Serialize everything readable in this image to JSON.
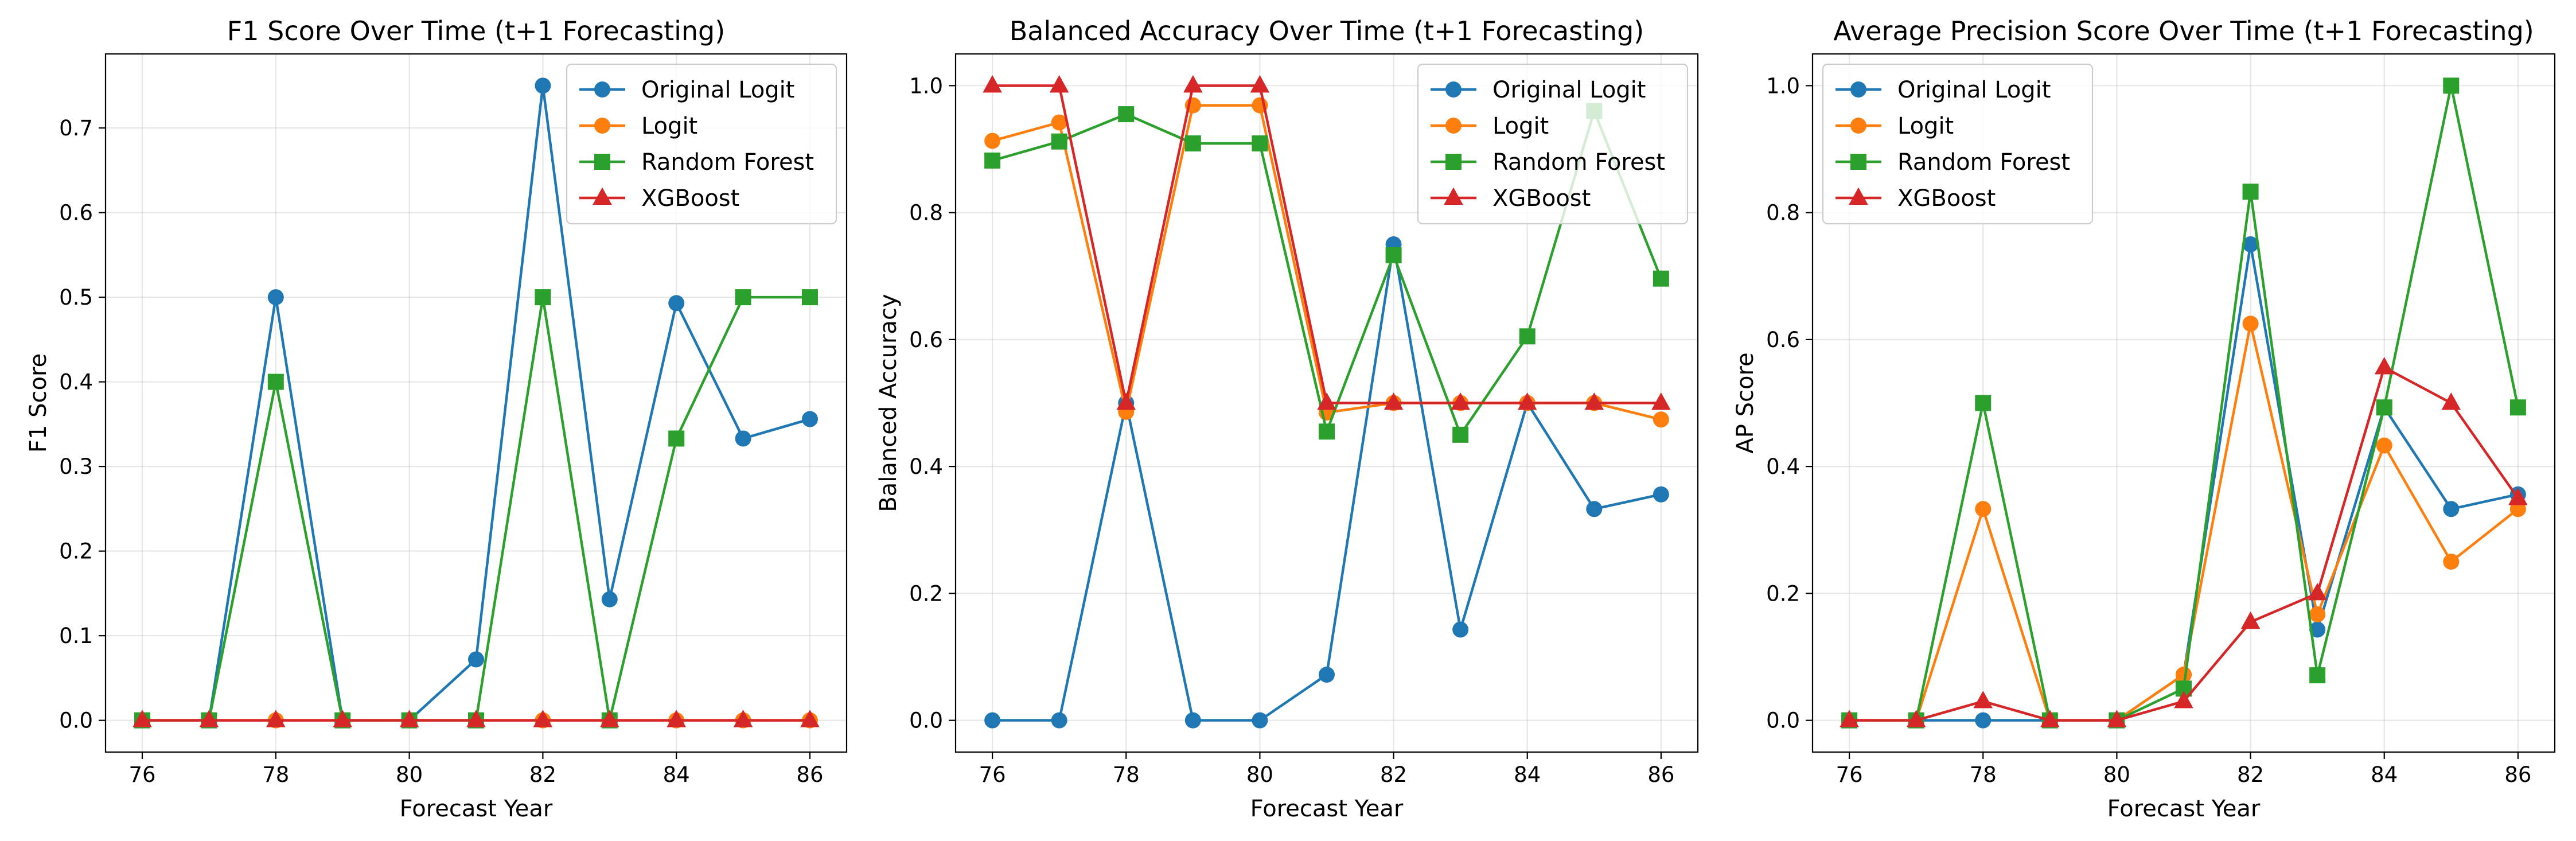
{
  "figure": {
    "layout": "1x3"
  },
  "series_styles": {
    "Original Logit": {
      "color": "#1f77b4",
      "marker": "circle"
    },
    "Logit": {
      "color": "#ff7f0e",
      "marker": "circle"
    },
    "Random Forest": {
      "color": "#2ca02c",
      "marker": "square"
    },
    "XGBoost": {
      "color": "#d62728",
      "marker": "triangle"
    }
  },
  "chart_data": [
    {
      "type": "line",
      "title": "F1 Score Over Time (t+1 Forecasting)",
      "xlabel": "Forecast Year",
      "ylabel": "F1 Score",
      "xlim": [
        75.45,
        86.55
      ],
      "ylim": [
        -0.0375,
        0.7875
      ],
      "xticks": [
        76,
        78,
        80,
        82,
        84,
        86
      ],
      "yticks": [
        0.0,
        0.1,
        0.2,
        0.3,
        0.4,
        0.5,
        0.6,
        0.7
      ],
      "ytick_labels": [
        "0.0",
        "0.1",
        "0.2",
        "0.3",
        "0.4",
        "0.5",
        "0.6",
        "0.7"
      ],
      "grid": true,
      "legend": "upper right",
      "x": [
        76,
        77,
        78,
        79,
        80,
        81,
        82,
        83,
        84,
        85,
        86
      ],
      "series": [
        {
          "name": "Original Logit",
          "values": [
            0.0,
            0.0,
            0.5,
            0.0,
            0.0,
            0.072,
            0.75,
            0.143,
            0.493,
            0.333,
            0.356
          ]
        },
        {
          "name": "Logit",
          "values": [
            0.0,
            0.0,
            0.0,
            0.0,
            0.0,
            0.0,
            0.0,
            0.0,
            0.0,
            0.0,
            0.0
          ]
        },
        {
          "name": "Random Forest",
          "values": [
            0.0,
            0.0,
            0.4,
            0.0,
            0.0,
            0.0,
            0.5,
            0.0,
            0.333,
            0.5,
            0.5
          ]
        },
        {
          "name": "XGBoost",
          "values": [
            0.0,
            0.0,
            0.0,
            0.0,
            0.0,
            0.0,
            0.0,
            0.0,
            0.0,
            0.0,
            0.0
          ]
        }
      ]
    },
    {
      "type": "line",
      "title": "Balanced Accuracy Over Time (t+1 Forecasting)",
      "xlabel": "Forecast Year",
      "ylabel": "Balanced Accuracy",
      "xlim": [
        75.45,
        86.55
      ],
      "ylim": [
        -0.05,
        1.05
      ],
      "xticks": [
        76,
        78,
        80,
        82,
        84,
        86
      ],
      "yticks": [
        0.0,
        0.2,
        0.4,
        0.6,
        0.8,
        1.0
      ],
      "ytick_labels": [
        "0.0",
        "0.2",
        "0.4",
        "0.6",
        "0.8",
        "1.0"
      ],
      "grid": true,
      "legend": "upper right",
      "x": [
        76,
        77,
        78,
        79,
        80,
        81,
        82,
        83,
        84,
        85,
        86
      ],
      "series": [
        {
          "name": "Original Logit",
          "values": [
            0.0,
            0.0,
            0.5,
            0.0,
            0.0,
            0.072,
            0.75,
            0.143,
            0.5,
            0.333,
            0.356
          ]
        },
        {
          "name": "Logit",
          "values": [
            0.913,
            0.942,
            0.486,
            0.969,
            0.969,
            0.485,
            0.5,
            0.5,
            0.5,
            0.5,
            0.474
          ]
        },
        {
          "name": "Random Forest",
          "values": [
            0.882,
            0.912,
            0.955,
            0.909,
            0.909,
            0.455,
            0.733,
            0.45,
            0.605,
            0.96,
            0.696
          ]
        },
        {
          "name": "XGBoost",
          "values": [
            1.0,
            1.0,
            0.5,
            1.0,
            1.0,
            0.5,
            0.5,
            0.5,
            0.5,
            0.5,
            0.5
          ]
        }
      ]
    },
    {
      "type": "line",
      "title": "Average Precision Score Over Time (t+1 Forecasting)",
      "xlabel": "Forecast Year",
      "ylabel": "AP Score",
      "xlim": [
        75.45,
        86.55
      ],
      "ylim": [
        -0.05,
        1.05
      ],
      "xticks": [
        76,
        78,
        80,
        82,
        84,
        86
      ],
      "yticks": [
        0.0,
        0.2,
        0.4,
        0.6,
        0.8,
        1.0
      ],
      "ytick_labels": [
        "0.0",
        "0.2",
        "0.4",
        "0.6",
        "0.8",
        "1.0"
      ],
      "grid": true,
      "legend": "upper left",
      "x": [
        76,
        77,
        78,
        79,
        80,
        81,
        82,
        83,
        84,
        85,
        86
      ],
      "series": [
        {
          "name": "Original Logit",
          "values": [
            0.0,
            0.0,
            0.0,
            0.0,
            0.0,
            0.072,
            0.75,
            0.143,
            0.493,
            0.333,
            0.356
          ]
        },
        {
          "name": "Logit",
          "values": [
            0.0,
            0.0,
            0.333,
            0.0,
            0.0,
            0.072,
            0.625,
            0.167,
            0.433,
            0.25,
            0.333
          ]
        },
        {
          "name": "Random Forest",
          "values": [
            0.0,
            0.0,
            0.5,
            0.0,
            0.0,
            0.05,
            0.833,
            0.071,
            0.493,
            1.0,
            0.493
          ]
        },
        {
          "name": "XGBoost",
          "values": [
            0.0,
            0.0,
            0.03,
            0.0,
            0.0,
            0.03,
            0.155,
            0.2,
            0.556,
            0.5,
            0.35
          ]
        }
      ]
    }
  ]
}
